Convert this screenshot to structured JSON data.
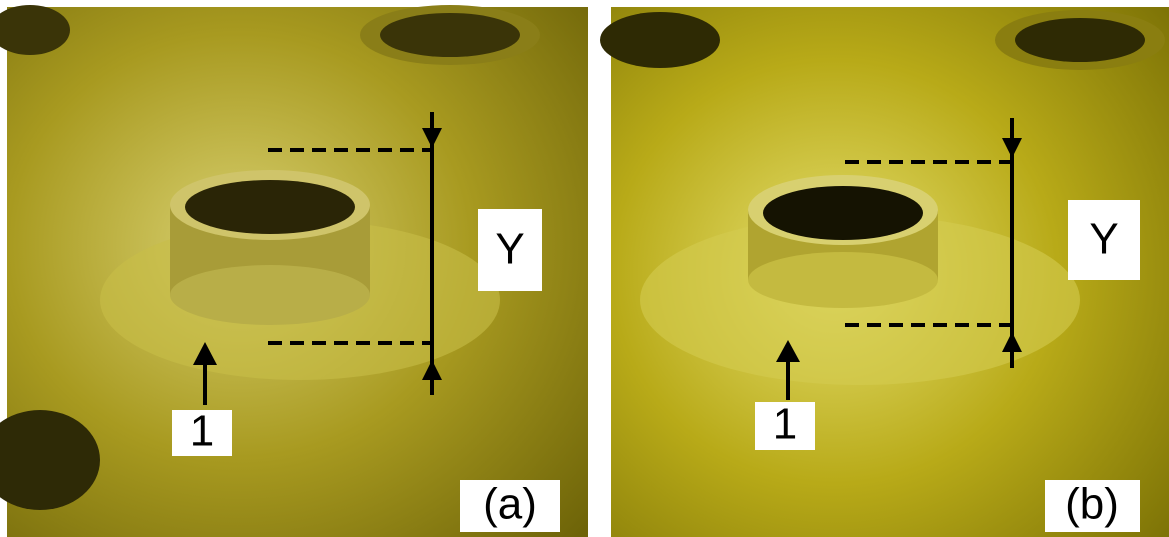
{
  "panels": [
    {
      "label": "(a)",
      "dimension_label": "Y",
      "feature_label": "1"
    },
    {
      "label": "(b)",
      "dimension_label": "Y",
      "feature_label": "1"
    }
  ]
}
